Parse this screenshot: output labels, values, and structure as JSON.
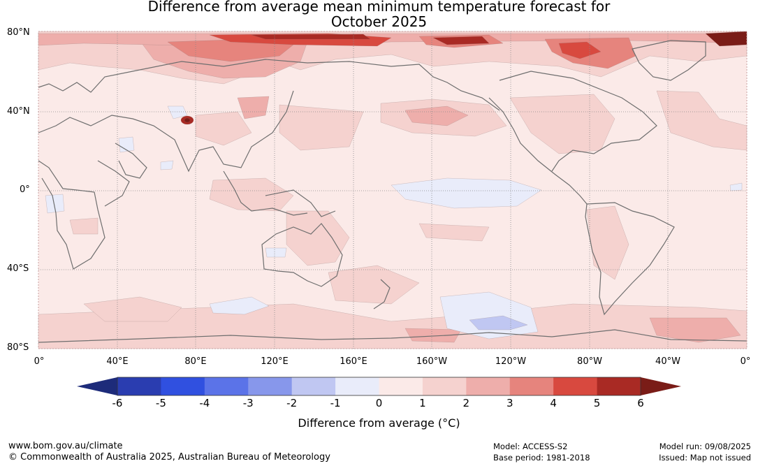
{
  "title": {
    "line1": "Difference from average mean minimum temperature forecast for",
    "line2": "October 2025"
  },
  "map": {
    "lat_labels": [
      "80°N",
      "40°N",
      "0°",
      "40°S",
      "80°S"
    ],
    "lon_labels": [
      "0°",
      "40°E",
      "80°E",
      "120°E",
      "160°E",
      "160°W",
      "120°W",
      "80°W",
      "40°W",
      "0°"
    ],
    "gridlines": true
  },
  "colorbar": {
    "tick_labels": [
      "-6",
      "-5",
      "-4",
      "-3",
      "-2",
      "-1",
      "0",
      "1",
      "2",
      "3",
      "4",
      "5",
      "6"
    ],
    "colors": [
      "#1d2b7a",
      "#2a3db0",
      "#3050e0",
      "#5b73e8",
      "#8797eb",
      "#c0c7f2",
      "#e9ecfa",
      "#fbeae8",
      "#f5d2cf",
      "#eeaeab",
      "#e6847d",
      "#d8493f",
      "#a92a24",
      "#7a1c17"
    ],
    "label": "Difference from average (°C)"
  },
  "footer": {
    "website": "www.bom.gov.au/climate",
    "copyright": "© Commonwealth of Australia 2025, Australian Bureau of Meteorology",
    "model": "Model: ACCESS-S2",
    "base_period": "Base period: 1981-2018",
    "model_run": "Model run: 09/08/2025",
    "issued": "Issued: Map not issued"
  }
}
